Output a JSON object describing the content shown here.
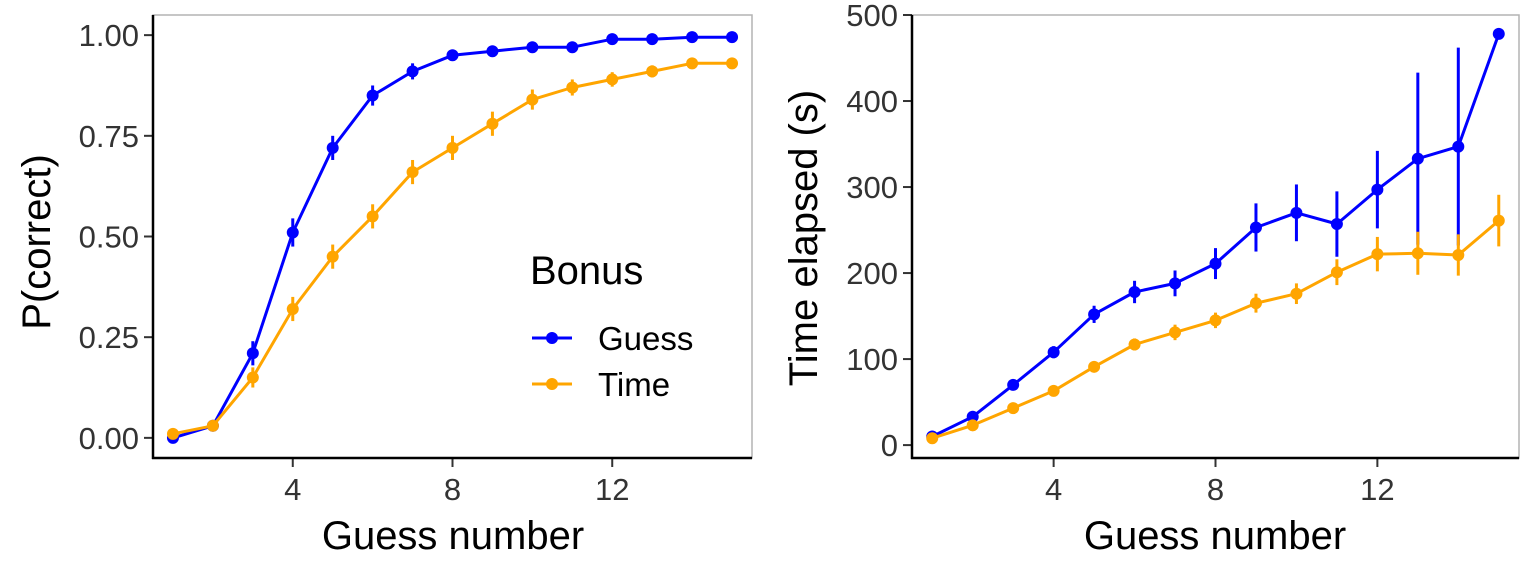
{
  "colors": {
    "guess": "#0000FF",
    "time": "#FFA500"
  },
  "chart_data": [
    {
      "type": "line",
      "xlabel": "Guess number",
      "ylabel": "P(correct)",
      "xlim": [
        0.5,
        15.5
      ],
      "ylim": [
        -0.05,
        1.05
      ],
      "xticks": [
        4,
        8,
        12
      ],
      "yticks": [
        0,
        0.25,
        0.5,
        0.75,
        1.0
      ],
      "ytick_labels": [
        "0.00",
        "0.25",
        "0.50",
        "0.75",
        "1.00"
      ],
      "grid": false,
      "legend": {
        "title": "Bonus",
        "position": "bottom-right",
        "entries": [
          "Guess",
          "Time"
        ]
      },
      "series": [
        {
          "name": "Guess",
          "color": "#0000FF",
          "x": [
            1,
            2,
            3,
            4,
            5,
            6,
            7,
            8,
            9,
            10,
            11,
            12,
            13,
            14,
            15
          ],
          "y": [
            0.0,
            0.03,
            0.21,
            0.51,
            0.72,
            0.85,
            0.91,
            0.95,
            0.96,
            0.97,
            0.97,
            0.99,
            0.99,
            0.995,
            0.995
          ],
          "err": [
            0.005,
            0.008,
            0.03,
            0.035,
            0.03,
            0.025,
            0.02,
            0.012,
            0.01,
            0.008,
            0.008,
            0.006,
            0.006,
            0.005,
            0.005
          ]
        },
        {
          "name": "Time",
          "color": "#FFA500",
          "x": [
            1,
            2,
            3,
            4,
            5,
            6,
            7,
            8,
            9,
            10,
            11,
            12,
            13,
            14,
            15
          ],
          "y": [
            0.01,
            0.03,
            0.15,
            0.32,
            0.45,
            0.55,
            0.66,
            0.72,
            0.78,
            0.84,
            0.87,
            0.89,
            0.91,
            0.93,
            0.93
          ],
          "err": [
            0.005,
            0.008,
            0.025,
            0.03,
            0.03,
            0.03,
            0.03,
            0.03,
            0.03,
            0.025,
            0.02,
            0.018,
            0.015,
            0.012,
            0.012
          ]
        }
      ]
    },
    {
      "type": "line",
      "xlabel": "Guess number",
      "ylabel": "Time elapsed (s)",
      "xlim": [
        0.5,
        15.5
      ],
      "ylim": [
        -15,
        500
      ],
      "xticks": [
        4,
        8,
        12
      ],
      "yticks": [
        0,
        100,
        200,
        300,
        400,
        500
      ],
      "ytick_labels": [
        "0",
        "100",
        "200",
        "300",
        "400",
        "500"
      ],
      "grid": false,
      "series": [
        {
          "name": "Guess",
          "color": "#0000FF",
          "x": [
            1,
            2,
            3,
            4,
            5,
            6,
            7,
            8,
            9,
            10,
            11,
            12,
            13,
            14,
            15
          ],
          "y": [
            10,
            33,
            70,
            108,
            152,
            178,
            188,
            211,
            253,
            270,
            257,
            297,
            333,
            347,
            478
          ],
          "err": [
            3,
            5,
            6,
            7,
            10,
            13,
            15,
            18,
            28,
            33,
            38,
            45,
            100,
            115,
            3
          ]
        },
        {
          "name": "Time",
          "color": "#FFA500",
          "x": [
            1,
            2,
            3,
            4,
            5,
            6,
            7,
            8,
            9,
            10,
            11,
            12,
            13,
            14,
            15
          ],
          "y": [
            8,
            23,
            43,
            63,
            91,
            117,
            131,
            145,
            165,
            176,
            201,
            222,
            223,
            221,
            261
          ],
          "err": [
            3,
            4,
            5,
            6,
            6,
            7,
            9,
            9,
            11,
            12,
            15,
            20,
            25,
            24,
            30
          ]
        }
      ]
    }
  ]
}
